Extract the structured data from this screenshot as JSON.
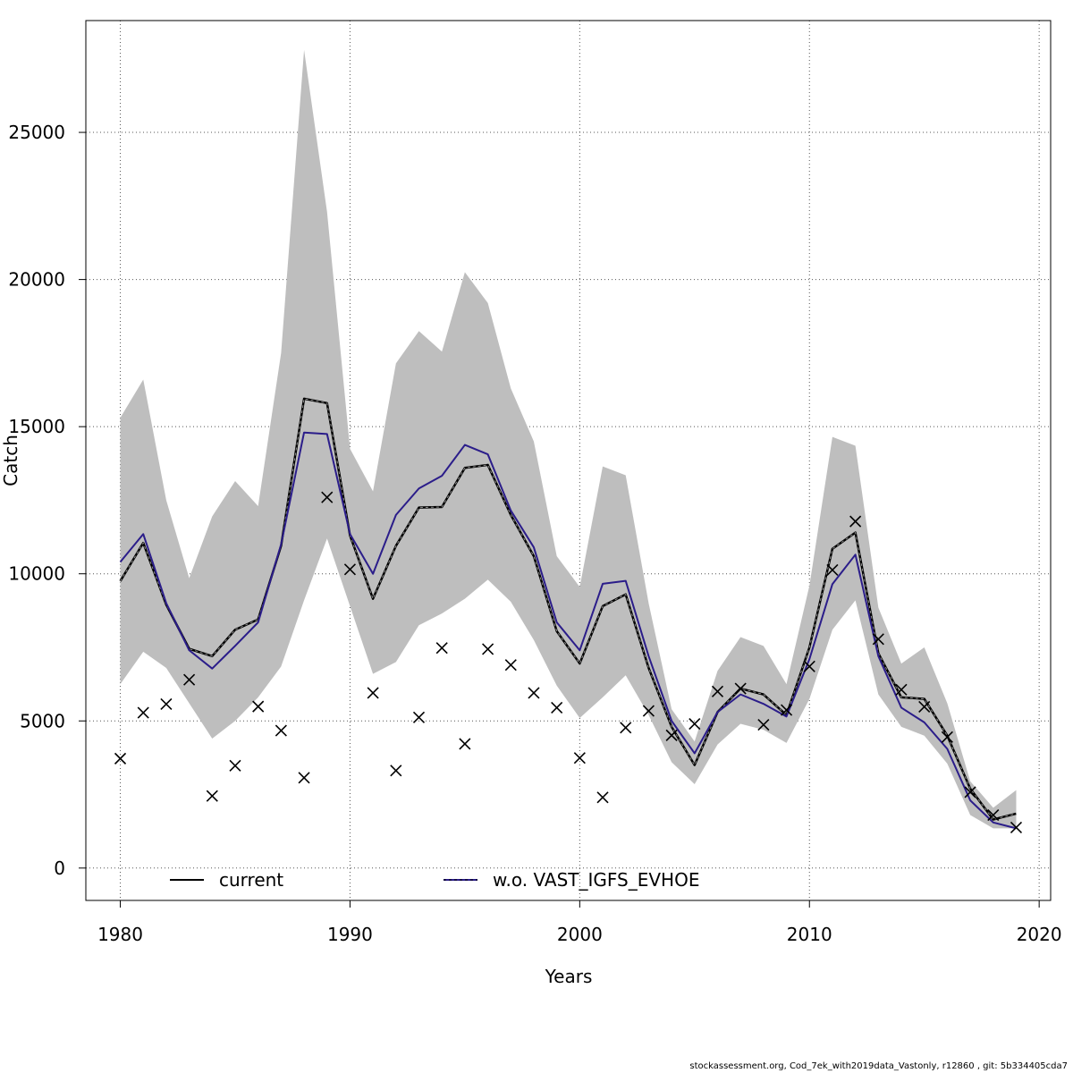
{
  "chart_data": {
    "type": "line",
    "xlabel": "Years",
    "ylabel": "Catch",
    "xlim": [
      1978.5,
      2020.5
    ],
    "ylim": [
      -1100,
      28800
    ],
    "x_ticks": [
      1980,
      1990,
      2000,
      2010,
      2020
    ],
    "y_ticks": [
      0,
      5000,
      10000,
      15000,
      20000,
      25000
    ],
    "grid": true,
    "legend_position": "bottom",
    "years": [
      1980,
      1981,
      1982,
      1983,
      1984,
      1985,
      1986,
      1987,
      1988,
      1989,
      1990,
      1991,
      1992,
      1993,
      1994,
      1995,
      1996,
      1997,
      1998,
      1999,
      2000,
      2001,
      2002,
      2003,
      2004,
      2005,
      2006,
      2007,
      2008,
      2009,
      2010,
      2011,
      2012,
      2013,
      2014,
      2015,
      2016,
      2017,
      2018,
      2019
    ],
    "series": [
      {
        "name": "current",
        "color": "#000000",
        "values": [
          9750,
          11050,
          8950,
          7450,
          7200,
          8100,
          8450,
          10950,
          15950,
          15800,
          11300,
          9150,
          10950,
          12250,
          12270,
          13600,
          13700,
          12000,
          10600,
          8050,
          6950,
          8900,
          9300,
          6800,
          4800,
          3500,
          5300,
          6100,
          5900,
          5200,
          7500,
          10850,
          11400,
          7300,
          5800,
          5750,
          4500,
          2700,
          1650,
          1850
        ]
      },
      {
        "name": "w.o. VAST_IGFS_EVHOE",
        "color": "#2b1d8a",
        "values": [
          10400,
          11350,
          9000,
          7400,
          6780,
          7550,
          8350,
          11000,
          14800,
          14750,
          11350,
          10000,
          12000,
          12900,
          13330,
          14380,
          14060,
          12150,
          10900,
          8350,
          7400,
          9660,
          9760,
          7200,
          5000,
          3900,
          5300,
          5900,
          5580,
          5150,
          7100,
          9650,
          10650,
          7200,
          5450,
          4950,
          4050,
          2300,
          1550,
          1350
        ]
      }
    ],
    "confidence_band": {
      "color": "#bebebe",
      "lower": [
        6250,
        7350,
        6800,
        5600,
        4400,
        5000,
        5800,
        6850,
        9100,
        11200,
        8900,
        6600,
        7000,
        8250,
        8650,
        9150,
        9800,
        9050,
        7750,
        6200,
        5100,
        5800,
        6550,
        5200,
        3600,
        2850,
        4200,
        4900,
        4700,
        4250,
        5750,
        8100,
        9100,
        5900,
        4800,
        4500,
        3550,
        1800,
        1350,
        1350
      ],
      "upper": [
        15300,
        16600,
        12500,
        9850,
        11950,
        13150,
        12300,
        17500,
        27800,
        22300,
        14250,
        12800,
        17150,
        18250,
        17550,
        20250,
        19200,
        16300,
        14500,
        10600,
        9550,
        13650,
        13350,
        9000,
        5400,
        4300,
        6700,
        7850,
        7550,
        6250,
        9600,
        14650,
        14350,
        8850,
        6950,
        7500,
        5600,
        2950,
        2050,
        2650
      ]
    },
    "observations": {
      "marker": "x",
      "values": [
        3720,
        5280,
        5570,
        6400,
        2450,
        3480,
        5490,
        4670,
        3070,
        12600,
        10150,
        5950,
        3310,
        5120,
        7480,
        4220,
        7440,
        6900,
        5950,
        5450,
        3740,
        2400,
        4770,
        5340,
        4510,
        4900,
        6000,
        6100,
        4870,
        5370,
        6850,
        10130,
        11780,
        7780,
        6060,
        5480,
        4450,
        2580,
        1800,
        1380
      ]
    }
  },
  "footer_text": "stockassessment.org, Cod_7ek_with2019data_Vastonly, r12860 , git: 5b334405cda7"
}
